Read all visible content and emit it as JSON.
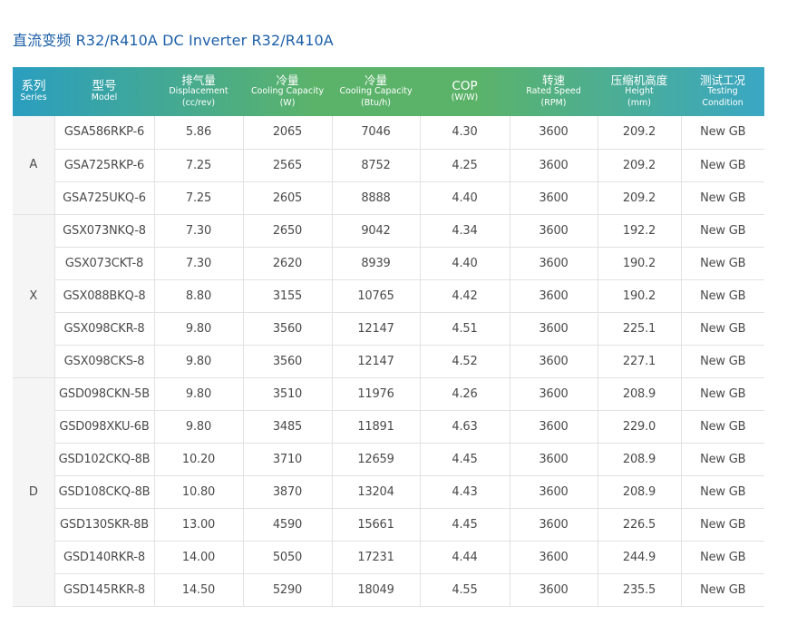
{
  "title": "直流变频 R32/R410A DC  Inverter R32/R410A",
  "colors": {
    "title": "#1c5fa8",
    "header_gradient": [
      "#2a9ec0",
      "#5bb36a",
      "#5bb36a",
      "#3aa7c4"
    ],
    "text": "#4a4a4a",
    "grid_line": "#e2e2e2"
  },
  "headers": [
    {
      "cn": "系列",
      "en": "Series",
      "unit": ""
    },
    {
      "cn": "型号",
      "en": "Model",
      "unit": ""
    },
    {
      "cn": "排气量",
      "en": "Displacement",
      "unit": "(cc/rev)"
    },
    {
      "cn": "冷量",
      "en": "Cooling Capacity",
      "unit": "(W)"
    },
    {
      "cn": "冷量",
      "en": "Cooling Capacity",
      "unit": "(Btu/h)"
    },
    {
      "cn": "COP",
      "en": "(W/W)",
      "unit": ""
    },
    {
      "cn": "转速",
      "en": "Rated Speed",
      "unit": "(RPM)"
    },
    {
      "cn": "压缩机高度",
      "en": "Height",
      "unit": "(mm)"
    },
    {
      "cn": "测试工况",
      "en": "Testing",
      "unit": "Condition"
    }
  ],
  "groups": [
    {
      "series": "A",
      "rows": [
        [
          "GSA586RKP-6",
          "5.86",
          "2065",
          "7046",
          "4.30",
          "3600",
          "209.2",
          "New GB"
        ],
        [
          "GSA725RKP-6",
          "7.25",
          "2565",
          "8752",
          "4.25",
          "3600",
          "209.2",
          "New GB"
        ],
        [
          "GSA725UKQ-6",
          "7.25",
          "2605",
          "8888",
          "4.40",
          "3600",
          "209.2",
          "New GB"
        ]
      ]
    },
    {
      "series": "X",
      "rows": [
        [
          "GSX073NKQ-8",
          "7.30",
          "2650",
          "9042",
          "4.34",
          "3600",
          "192.2",
          "New GB"
        ],
        [
          "GSX073CKT-8",
          "7.30",
          "2620",
          "8939",
          "4.40",
          "3600",
          "190.2",
          "New GB"
        ],
        [
          "GSX088BKQ-8",
          "8.80",
          "3155",
          "10765",
          "4.42",
          "3600",
          "190.2",
          "New GB"
        ],
        [
          "GSX098CKR-8",
          "9.80",
          "3560",
          "12147",
          "4.51",
          "3600",
          "225.1",
          "New GB"
        ],
        [
          "GSX098CKS-8",
          "9.80",
          "3560",
          "12147",
          "4.52",
          "3600",
          "227.1",
          "New GB"
        ]
      ]
    },
    {
      "series": "D",
      "rows": [
        [
          "GSD098CKN-5B",
          "9.80",
          "3510",
          "11976",
          "4.26",
          "3600",
          "208.9",
          "New GB"
        ],
        [
          "GSD098XKU-6B",
          "9.80",
          "3485",
          "11891",
          "4.63",
          "3600",
          "229.0",
          "New GB"
        ],
        [
          "GSD102CKQ-8B",
          "10.20",
          "3710",
          "12659",
          "4.45",
          "3600",
          "208.9",
          "New GB"
        ],
        [
          "GSD108CKQ-8B",
          "10.80",
          "3870",
          "13204",
          "4.43",
          "3600",
          "208.9",
          "New GB"
        ],
        [
          "GSD130SKR-8B",
          "13.00",
          "4590",
          "15661",
          "4.45",
          "3600",
          "226.5",
          "New GB"
        ],
        [
          "GSD140RKR-8",
          "14.00",
          "5050",
          "17231",
          "4.44",
          "3600",
          "244.9",
          "New GB"
        ],
        [
          "GSD145RKR-8",
          "14.50",
          "5290",
          "18049",
          "4.55",
          "3600",
          "235.5",
          "New GB"
        ]
      ]
    }
  ]
}
